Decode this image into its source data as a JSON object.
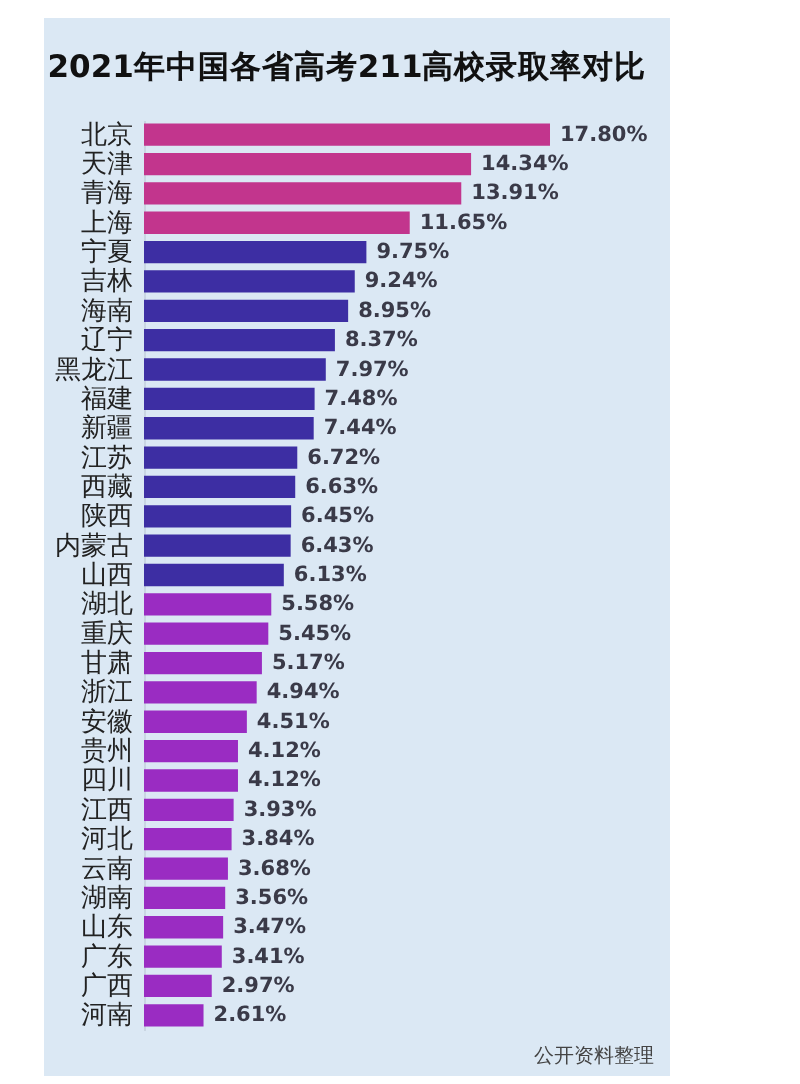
{
  "chart_data": {
    "type": "bar",
    "orientation": "horizontal",
    "title": "2021年中国各省高考211高校录取率对比",
    "categories": [
      "北京",
      "天津",
      "青海",
      "上海",
      "宁夏",
      "吉林",
      "海南",
      "辽宁",
      "黑龙江",
      "福建",
      "新疆",
      "江苏",
      "西藏",
      "陕西",
      "内蒙古",
      "山西",
      "湖北",
      "重庆",
      "甘肃",
      "浙江",
      "安徽",
      "贵州",
      "四川",
      "江西",
      "河北",
      "云南",
      "湖南",
      "山东",
      "广东",
      "广西",
      "河南"
    ],
    "values": [
      17.8,
      14.34,
      13.91,
      11.65,
      9.75,
      9.24,
      8.95,
      8.37,
      7.97,
      7.48,
      7.44,
      6.72,
      6.63,
      6.45,
      6.43,
      6.13,
      5.58,
      5.45,
      5.17,
      4.94,
      4.51,
      4.12,
      4.12,
      3.93,
      3.84,
      3.68,
      3.56,
      3.47,
      3.41,
      2.97,
      2.61
    ],
    "value_labels": [
      "17.80%",
      "14.34%",
      "13.91%",
      "11.65%",
      "9.75%",
      "9.24%",
      "8.95%",
      "8.37%",
      "7.97%",
      "7.48%",
      "7.44%",
      "6.72%",
      "6.63%",
      "6.45%",
      "6.43%",
      "6.13%",
      "5.58%",
      "5.45%",
      "5.17%",
      "4.94%",
      "4.51%",
      "4.12%",
      "4.12%",
      "3.93%",
      "3.84%",
      "3.68%",
      "3.56%",
      "3.47%",
      "3.41%",
      "2.97%",
      "2.61%"
    ],
    "colors": [
      "#c2358d",
      "#c2358d",
      "#c2358d",
      "#c2358d",
      "#3d2ea3",
      "#3d2ea3",
      "#3d2ea3",
      "#3d2ea3",
      "#3d2ea3",
      "#3d2ea3",
      "#3d2ea3",
      "#3d2ea3",
      "#3d2ea3",
      "#3d2ea3",
      "#3d2ea3",
      "#3d2ea3",
      "#9a2cc2",
      "#9a2cc2",
      "#9a2cc2",
      "#9a2cc2",
      "#9a2cc2",
      "#9a2cc2",
      "#9a2cc2",
      "#9a2cc2",
      "#9a2cc2",
      "#9a2cc2",
      "#9a2cc2",
      "#9a2cc2",
      "#9a2cc2",
      "#9a2cc2",
      "#9a2cc2"
    ],
    "tick_labels": "y",
    "annotations": [
      "公开资料整理"
    ]
  }
}
